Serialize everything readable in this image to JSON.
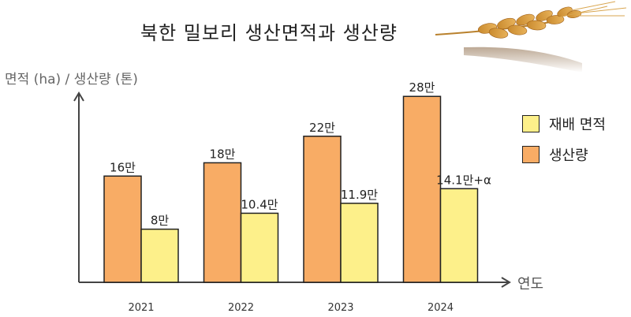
{
  "title": "북한 밀보리 생산면적과 생산량",
  "wheat_image": "wheat-ear-image",
  "chart_data": {
    "type": "bar",
    "categories": [
      "2021",
      "2022",
      "2023",
      "2024"
    ],
    "series": [
      {
        "name": "생산량",
        "values": [
          16,
          18,
          22,
          28
        ],
        "labels": [
          "16만",
          "18만",
          "22만",
          "28만"
        ],
        "color": "#f8ac65"
      },
      {
        "name": "재배 면적",
        "values": [
          8,
          10.4,
          11.9,
          14.1
        ],
        "labels": [
          "8만",
          "10.4만",
          "11.9만",
          "14.1만+α"
        ],
        "color": "#fdf08a"
      }
    ],
    "unit": "만",
    "ylabel": "면적 (ha) / 생산량 (톤)",
    "xlabel": "연도",
    "ylim": [
      0,
      30
    ],
    "grid": false,
    "legend": "right",
    "legend_order": [
      "재배 면적",
      "생산량"
    ],
    "axis_color": "#444444"
  }
}
